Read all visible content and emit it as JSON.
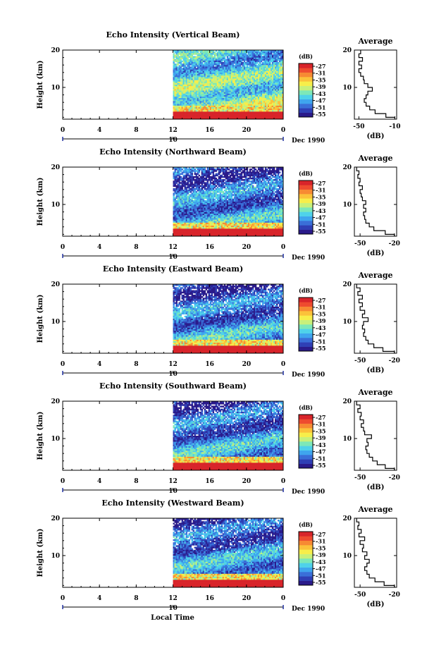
{
  "figure": {
    "xlabel": "Local Time",
    "date_label": "Dec 1990",
    "date_tick": "10"
  },
  "colorbar": {
    "unit": "(dB)",
    "labels": [
      "-27",
      "-31",
      "-35",
      "-39",
      "-43",
      "-47",
      "-51",
      "-55"
    ],
    "colors": [
      "#2a1a8a",
      "#2f3fb5",
      "#3a6fd8",
      "#3fa5ee",
      "#4fd2ea",
      "#7de8b8",
      "#c8f07a",
      "#f7ee4a",
      "#fbc23a",
      "#f78a33",
      "#ee4b2f",
      "#d8242a"
    ]
  },
  "chart_data": [
    {
      "type": "heatmap",
      "title": "Echo Intensity (Vertical Beam)",
      "ylabel": "Height (km)",
      "x_ticks": [
        "0",
        "4",
        "8",
        "12",
        "16",
        "20",
        "0"
      ],
      "xlim": [
        0,
        24
      ],
      "ylim": [
        1.5,
        20
      ],
      "y_ticks": [
        "10",
        "20"
      ],
      "data_start_hour": 12,
      "profile": {
        "title": "Average",
        "xlabel": "(dB)",
        "x_ticks": [
          "-50",
          "-10"
        ],
        "xlim": [
          -55,
          -8
        ],
        "height": [
          1.5,
          2.5,
          3.5,
          4.5,
          5.5,
          6.5,
          7.5,
          8.5,
          9.5,
          10.5,
          11.5,
          12.5,
          13.5,
          14.5,
          15.5,
          16.5,
          17.5,
          18.5,
          19.5
        ],
        "db": [
          -10,
          -20,
          -32,
          -38,
          -42,
          -44,
          -42,
          -40,
          -35,
          -40,
          -44,
          -45,
          -48,
          -50,
          -47,
          -50,
          -46,
          -50,
          -48
        ]
      }
    },
    {
      "type": "heatmap",
      "title": "Echo Intensity (Northward Beam)",
      "ylabel": "Height (km)",
      "x_ticks": [
        "0",
        "4",
        "8",
        "12",
        "16",
        "20",
        "0"
      ],
      "xlim": [
        0,
        24
      ],
      "ylim": [
        1.5,
        20
      ],
      "y_ticks": [
        "10",
        "20"
      ],
      "data_start_hour": 12,
      "profile": {
        "title": "Average",
        "xlabel": "(dB)",
        "x_ticks": [
          "-50",
          "-20"
        ],
        "xlim": [
          -55,
          -18
        ],
        "height": [
          1.5,
          2.5,
          3.5,
          4.5,
          5.5,
          6.5,
          7.5,
          8.5,
          9.5,
          10.5,
          11.5,
          12.5,
          13.5,
          14.5,
          15.5,
          16.5,
          17.5,
          18.5,
          19.5
        ],
        "db": [
          -20,
          -28,
          -38,
          -42,
          -45,
          -46,
          -47,
          -45,
          -47,
          -45,
          -48,
          -49,
          -50,
          -48,
          -51,
          -50,
          -52,
          -51,
          -53
        ]
      }
    },
    {
      "type": "heatmap",
      "title": "Echo Intensity (Eastward Beam)",
      "ylabel": "Height (km)",
      "x_ticks": [
        "0",
        "4",
        "8",
        "12",
        "16",
        "20",
        "0"
      ],
      "xlim": [
        0,
        24
      ],
      "ylim": [
        1.5,
        20
      ],
      "y_ticks": [
        "10",
        "20"
      ],
      "data_start_hour": 12,
      "profile": {
        "title": "Average",
        "xlabel": "(dB)",
        "x_ticks": [
          "-50",
          "-20"
        ],
        "xlim": [
          -55,
          -18
        ],
        "height": [
          1.5,
          2.5,
          3.5,
          4.5,
          5.5,
          6.5,
          7.5,
          8.5,
          9.5,
          10.5,
          11.5,
          12.5,
          13.5,
          14.5,
          15.5,
          16.5,
          17.5,
          18.5,
          19.5
        ],
        "db": [
          -20,
          -30,
          -38,
          -43,
          -45,
          -47,
          -46,
          -48,
          -47,
          -43,
          -48,
          -46,
          -50,
          -48,
          -51,
          -48,
          -52,
          -50,
          -53
        ]
      }
    },
    {
      "type": "heatmap",
      "title": "Echo Intensity (Southward Beam)",
      "ylabel": "Height (km)",
      "x_ticks": [
        "0",
        "4",
        "8",
        "12",
        "16",
        "20",
        "0"
      ],
      "xlim": [
        0,
        24
      ],
      "ylim": [
        1.5,
        20
      ],
      "y_ticks": [
        "10",
        "20"
      ],
      "data_start_hour": 12,
      "profile": {
        "title": "Average",
        "xlabel": "(dB)",
        "x_ticks": [
          "-50",
          "-20"
        ],
        "xlim": [
          -55,
          -18
        ],
        "height": [
          1.5,
          2.5,
          3.5,
          4.5,
          5.5,
          6.5,
          7.5,
          8.5,
          9.5,
          10.5,
          11.5,
          12.5,
          13.5,
          14.5,
          15.5,
          16.5,
          17.5,
          18.5,
          19.5
        ],
        "db": [
          -20,
          -28,
          -35,
          -39,
          -42,
          -44,
          -45,
          -43,
          -44,
          -40,
          -46,
          -47,
          -49,
          -47,
          -50,
          -49,
          -52,
          -50,
          -53
        ]
      }
    },
    {
      "type": "heatmap",
      "title": "Echo Intensity (Westward Beam)",
      "ylabel": "Height (km)",
      "x_ticks": [
        "0",
        "4",
        "8",
        "12",
        "16",
        "20",
        "0"
      ],
      "xlim": [
        0,
        24
      ],
      "ylim": [
        1.5,
        20
      ],
      "y_ticks": [
        "10",
        "20"
      ],
      "data_start_hour": 12,
      "profile": {
        "title": "Average",
        "xlabel": "(dB)",
        "x_ticks": [
          "-50",
          "-20"
        ],
        "xlim": [
          -55,
          -18
        ],
        "height": [
          1.5,
          2.5,
          3.5,
          4.5,
          5.5,
          6.5,
          7.5,
          8.5,
          9.5,
          10.5,
          11.5,
          12.5,
          13.5,
          14.5,
          15.5,
          16.5,
          17.5,
          18.5,
          19.5
        ],
        "db": [
          -20,
          -29,
          -37,
          -42,
          -44,
          -46,
          -44,
          -42,
          -46,
          -44,
          -48,
          -47,
          -50,
          -46,
          -51,
          -49,
          -52,
          -51,
          -53
        ]
      }
    }
  ]
}
